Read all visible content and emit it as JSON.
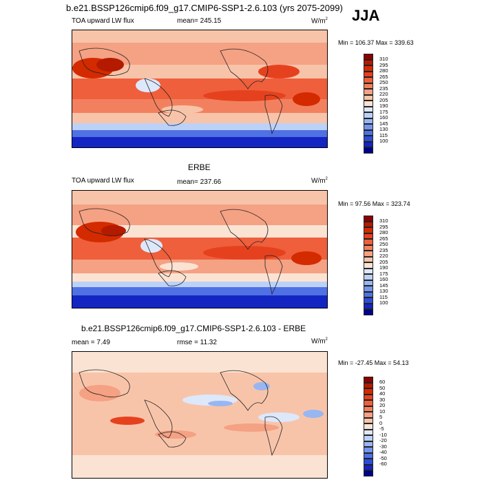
{
  "header": {
    "title": "b.e21.BSSP126cmip6.f09_g17.CMIP6-SSP1-2.6.103 (yrs 2075-2099)",
    "season": "JJA"
  },
  "panels": [
    {
      "heading": "",
      "left_label": "TOA upward LW flux",
      "center_label": "mean= 245.15",
      "units": "W/m",
      "units_sup": "2",
      "minmax": "Min = 106.37 Max = 339.63",
      "colorbar": {
        "colors": [
          "#8b0000",
          "#b31a00",
          "#d42a00",
          "#e6411e",
          "#ef5f3c",
          "#f2805e",
          "#f5a183",
          "#f8c4a9",
          "#fbe3d3",
          "#dde8fb",
          "#bcd1f7",
          "#98b6f2",
          "#7395ec",
          "#4f71e4",
          "#2d4dd9",
          "#1426c2",
          "#00008b"
        ],
        "labels": [
          "310",
          "295",
          "280",
          "265",
          "250",
          "235",
          "220",
          "205",
          "190",
          "175",
          "160",
          "145",
          "130",
          "115",
          "100"
        ]
      }
    },
    {
      "heading": "ERBE",
      "left_label": "TOA upward LW flux",
      "center_label": "mean= 237.66",
      "units": "W/m",
      "units_sup": "2",
      "minmax": "Min =  97.56 Max = 323.74",
      "colorbar": {
        "colors": [
          "#8b0000",
          "#b31a00",
          "#d42a00",
          "#e6411e",
          "#ef5f3c",
          "#f2805e",
          "#f5a183",
          "#f8c4a9",
          "#fbe3d3",
          "#dde8fb",
          "#bcd1f7",
          "#98b6f2",
          "#7395ec",
          "#4f71e4",
          "#2d4dd9",
          "#1426c2",
          "#00008b"
        ],
        "labels": [
          "310",
          "295",
          "280",
          "265",
          "250",
          "235",
          "220",
          "205",
          "190",
          "175",
          "160",
          "145",
          "130",
          "115",
          "100"
        ]
      }
    },
    {
      "heading": "b.e21.BSSP126cmip6.f09_g17.CMIP6-SSP1-2.6.103 - ERBE",
      "left_label": "mean =   7.49",
      "center_label": "rmse =  11.32",
      "units": "W/m",
      "units_sup": "2",
      "minmax": "Min = -27.45 Max =  54.13",
      "colorbar": {
        "colors": [
          "#8b0000",
          "#b31a00",
          "#d42a00",
          "#e6411e",
          "#ef5f3c",
          "#f2805e",
          "#f5a183",
          "#f8c4a9",
          "#fbe3d3",
          "#dde8fb",
          "#bcd1f7",
          "#98b6f2",
          "#7395ec",
          "#4f71e4",
          "#2d4dd9",
          "#1426c2",
          "#00008b"
        ],
        "labels": [
          "60",
          "50",
          "40",
          "30",
          "20",
          "10",
          "5",
          "0",
          "-5",
          "-10",
          "-20",
          "-30",
          "-40",
          "-50",
          "-60"
        ]
      }
    }
  ]
}
